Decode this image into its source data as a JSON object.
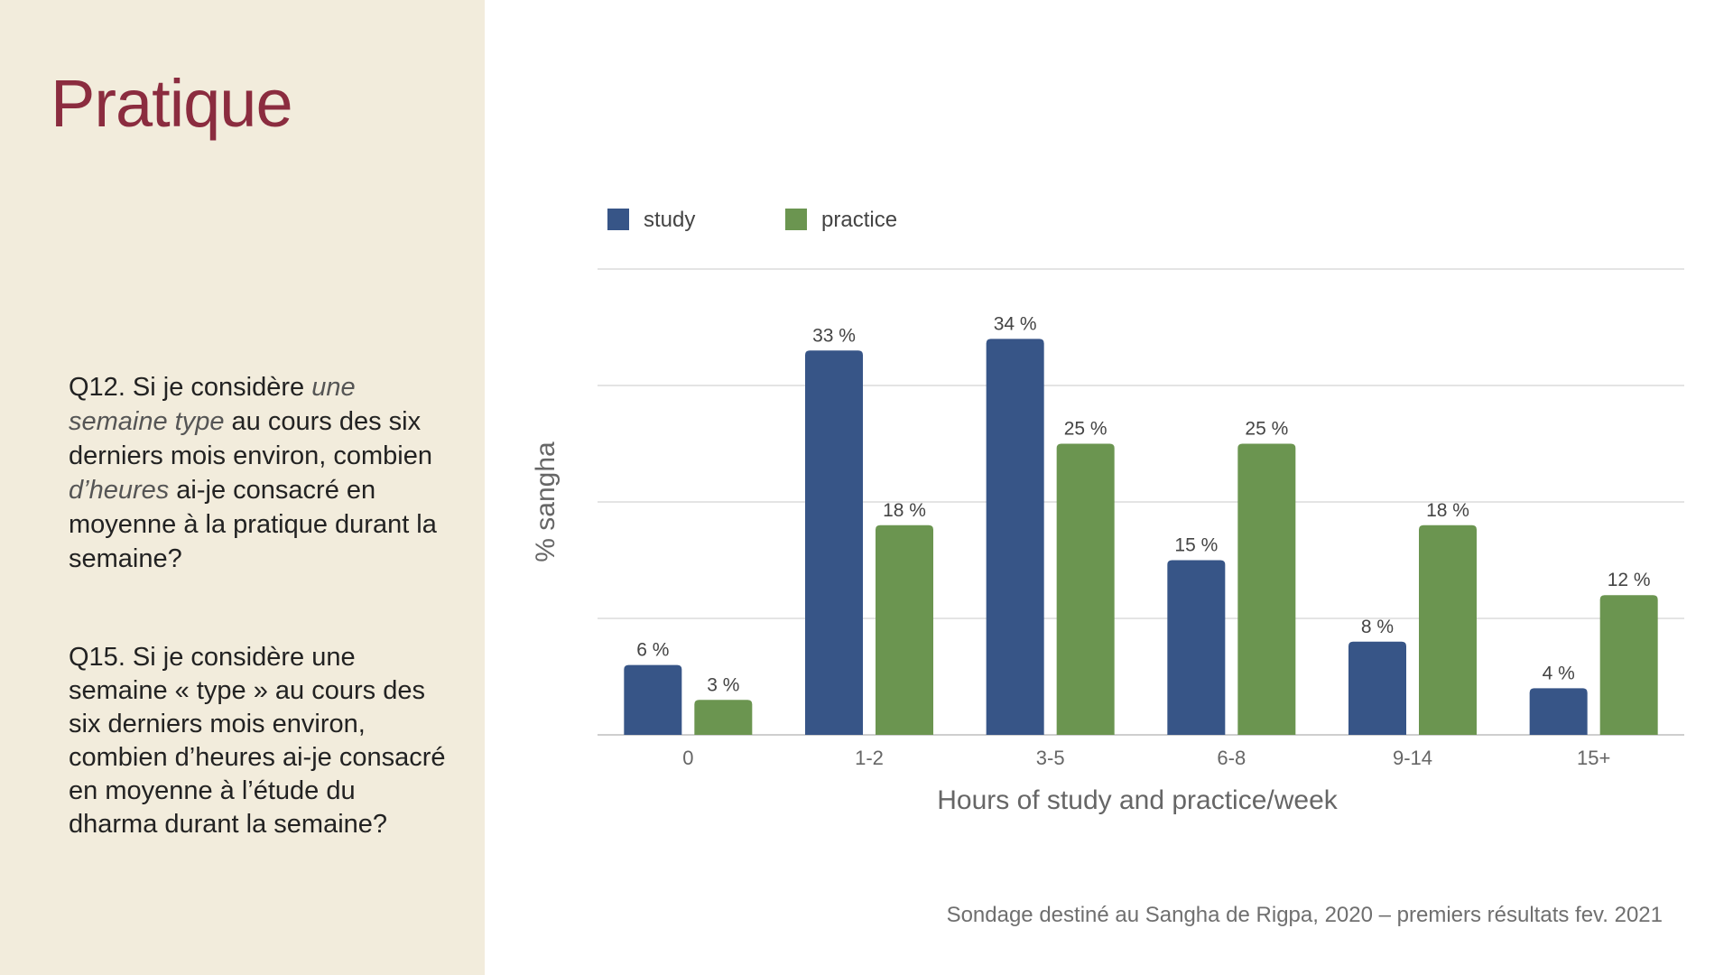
{
  "title": "Pratique",
  "q12": {
    "part1": "Q12. Si je considère ",
    "emph1": "une semaine type",
    "part2": " au cours des six derniers mois environ, combien ",
    "emph2": "d’heures",
    "part3": " ai-je consacré en moyenne à la pratique durant la semaine?"
  },
  "q15": {
    "text": "Q15.  Si je considère une semaine « type » au cours des six derniers mois environ, combien d’heures ai-je consacré en moyenne à l’étude du dharma durant la semaine?"
  },
  "source": "Sondage destiné au Sangha de Rigpa, 2020  – premiers résultats fev. 2021",
  "chart_data": {
    "type": "bar",
    "title": "",
    "xlabel": "Hours of study and practice/week",
    "ylabel": "% sangha",
    "ylim": [
      0,
      40
    ],
    "grid": true,
    "legend_position": "top-left",
    "categories": [
      "0",
      "1-2",
      "3-5",
      "6-8",
      "9-14",
      "15+"
    ],
    "series": [
      {
        "name": "study",
        "color": "#375587",
        "values": [
          6,
          33,
          34,
          15,
          8,
          4
        ],
        "labels": [
          "6 %",
          "33 %",
          "34 %",
          "15 %",
          "8 %",
          "4 %"
        ]
      },
      {
        "name": "practice",
        "color": "#6b9550",
        "values": [
          3,
          18,
          25,
          25,
          18,
          12
        ],
        "labels": [
          "3 %",
          "18 %",
          "25 %",
          "25 %",
          "18 %",
          "12 %"
        ]
      }
    ]
  }
}
